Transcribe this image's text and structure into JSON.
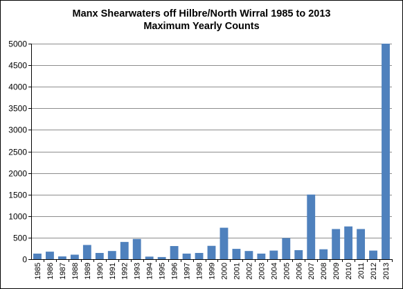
{
  "chart_data": {
    "type": "bar",
    "title": "Manx Shearwaters off Hilbre/North Wirral 1985 to 2013",
    "subtitle": "Maximum Yearly Counts",
    "xlabel": "",
    "ylabel": "",
    "ylim": [
      0,
      5000
    ],
    "yticks": [
      "0",
      "500",
      "1000",
      "1500",
      "2000",
      "2500",
      "3000",
      "3500",
      "4000",
      "4500",
      "5000"
    ],
    "grid": true,
    "legend": "none",
    "bar_color": "#4f81bd",
    "gridline_color": "#8c8c8c",
    "categories": [
      "1985",
      "1986",
      "1987",
      "1988",
      "1989",
      "1990",
      "1991",
      "1992",
      "1993",
      "1994",
      "1995",
      "1996",
      "1997",
      "1998",
      "1999",
      "2000",
      "2001",
      "2002",
      "2003",
      "2004",
      "2005",
      "2006",
      "2007",
      "2008",
      "2009",
      "2010",
      "2011",
      "2012",
      "2013"
    ],
    "values": [
      130,
      175,
      65,
      105,
      330,
      145,
      190,
      400,
      470,
      60,
      50,
      305,
      130,
      145,
      310,
      730,
      240,
      190,
      130,
      200,
      490,
      210,
      1500,
      230,
      700,
      760,
      700,
      200,
      5000
    ]
  }
}
